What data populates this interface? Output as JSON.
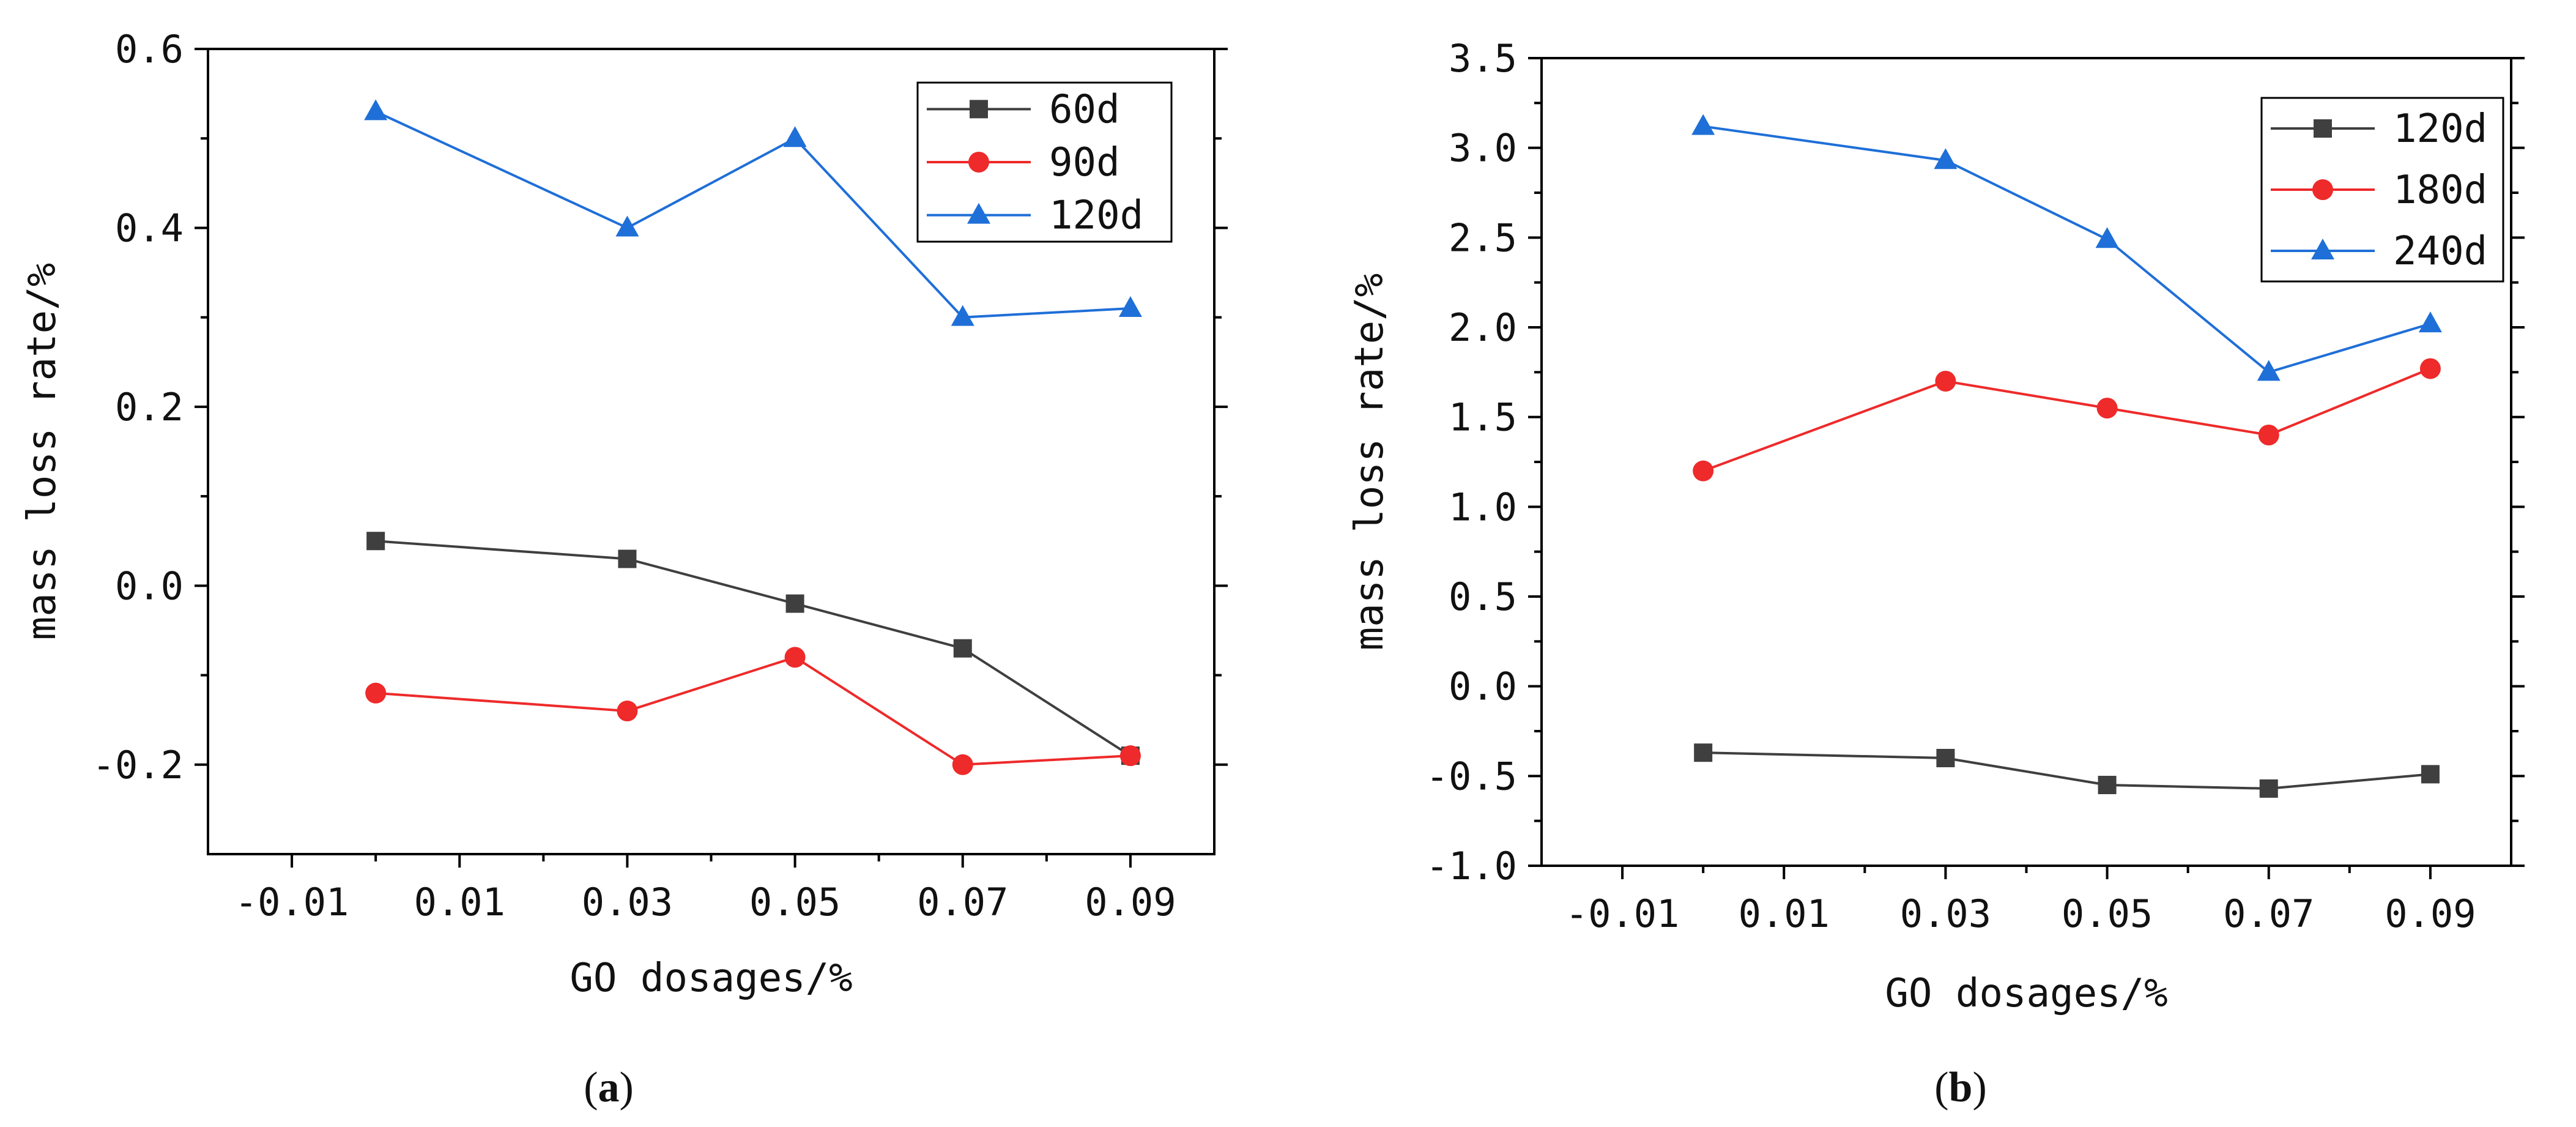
{
  "chart_data": [
    {
      "type": "line",
      "caption": "a",
      "xlabel": "GO dosages/%",
      "ylabel": "mass loss rate/%",
      "xlim": [
        -0.02,
        0.1
      ],
      "ylim": [
        -0.3,
        0.6
      ],
      "xticks": [
        -0.01,
        0.01,
        0.03,
        0.05,
        0.07,
        0.09
      ],
      "xtick_labels": [
        "-0.01",
        "0.01",
        "0.03",
        "0.05",
        "0.07",
        "0.09"
      ],
      "yticks": [
        -0.2,
        0.0,
        0.2,
        0.4,
        0.6
      ],
      "ytick_labels": [
        "-0.2",
        "0.0",
        "0.2",
        "0.4",
        "0.6"
      ],
      "x": [
        0,
        0.03,
        0.05,
        0.07,
        0.09
      ],
      "legend_position": "top-right",
      "series": [
        {
          "name": "60d",
          "color": "#3f3f3f",
          "marker": "square",
          "values": [
            0.05,
            0.03,
            -0.02,
            -0.07,
            -0.19
          ]
        },
        {
          "name": "90d",
          "color": "#ee2a2a",
          "marker": "circle",
          "values": [
            -0.12,
            -0.14,
            -0.08,
            -0.2,
            -0.19
          ]
        },
        {
          "name": "120d",
          "color": "#1f6fd8",
          "marker": "triangle",
          "values": [
            0.53,
            0.4,
            0.5,
            0.3,
            0.31
          ]
        }
      ]
    },
    {
      "type": "line",
      "caption": "b",
      "xlabel": "GO dosages/%",
      "ylabel": "mass loss rate/%",
      "xlim": [
        -0.02,
        0.1
      ],
      "ylim": [
        -1.0,
        3.5
      ],
      "xticks": [
        -0.01,
        0.01,
        0.03,
        0.05,
        0.07,
        0.09
      ],
      "xtick_labels": [
        "-0.01",
        "0.01",
        "0.03",
        "0.05",
        "0.07",
        "0.09"
      ],
      "yticks": [
        -1.0,
        -0.5,
        0.0,
        0.5,
        1.0,
        1.5,
        2.0,
        2.5,
        3.0,
        3.5
      ],
      "ytick_labels": [
        "-1.0",
        "-0.5",
        "0.0",
        "0.5",
        "1.0",
        "1.5",
        "2.0",
        "2.5",
        "3.0",
        "3.5"
      ],
      "x": [
        0,
        0.03,
        0.05,
        0.07,
        0.09
      ],
      "legend_position": "top-right",
      "series": [
        {
          "name": "120d",
          "color": "#3f3f3f",
          "marker": "square",
          "values": [
            -0.37,
            -0.4,
            -0.55,
            -0.57,
            -0.49
          ]
        },
        {
          "name": "180d",
          "color": "#ee2a2a",
          "marker": "circle",
          "values": [
            1.2,
            1.7,
            1.55,
            1.4,
            1.77
          ]
        },
        {
          "name": "240d",
          "color": "#1f6fd8",
          "marker": "triangle",
          "values": [
            3.12,
            2.93,
            2.49,
            1.75,
            2.02
          ]
        }
      ]
    }
  ]
}
